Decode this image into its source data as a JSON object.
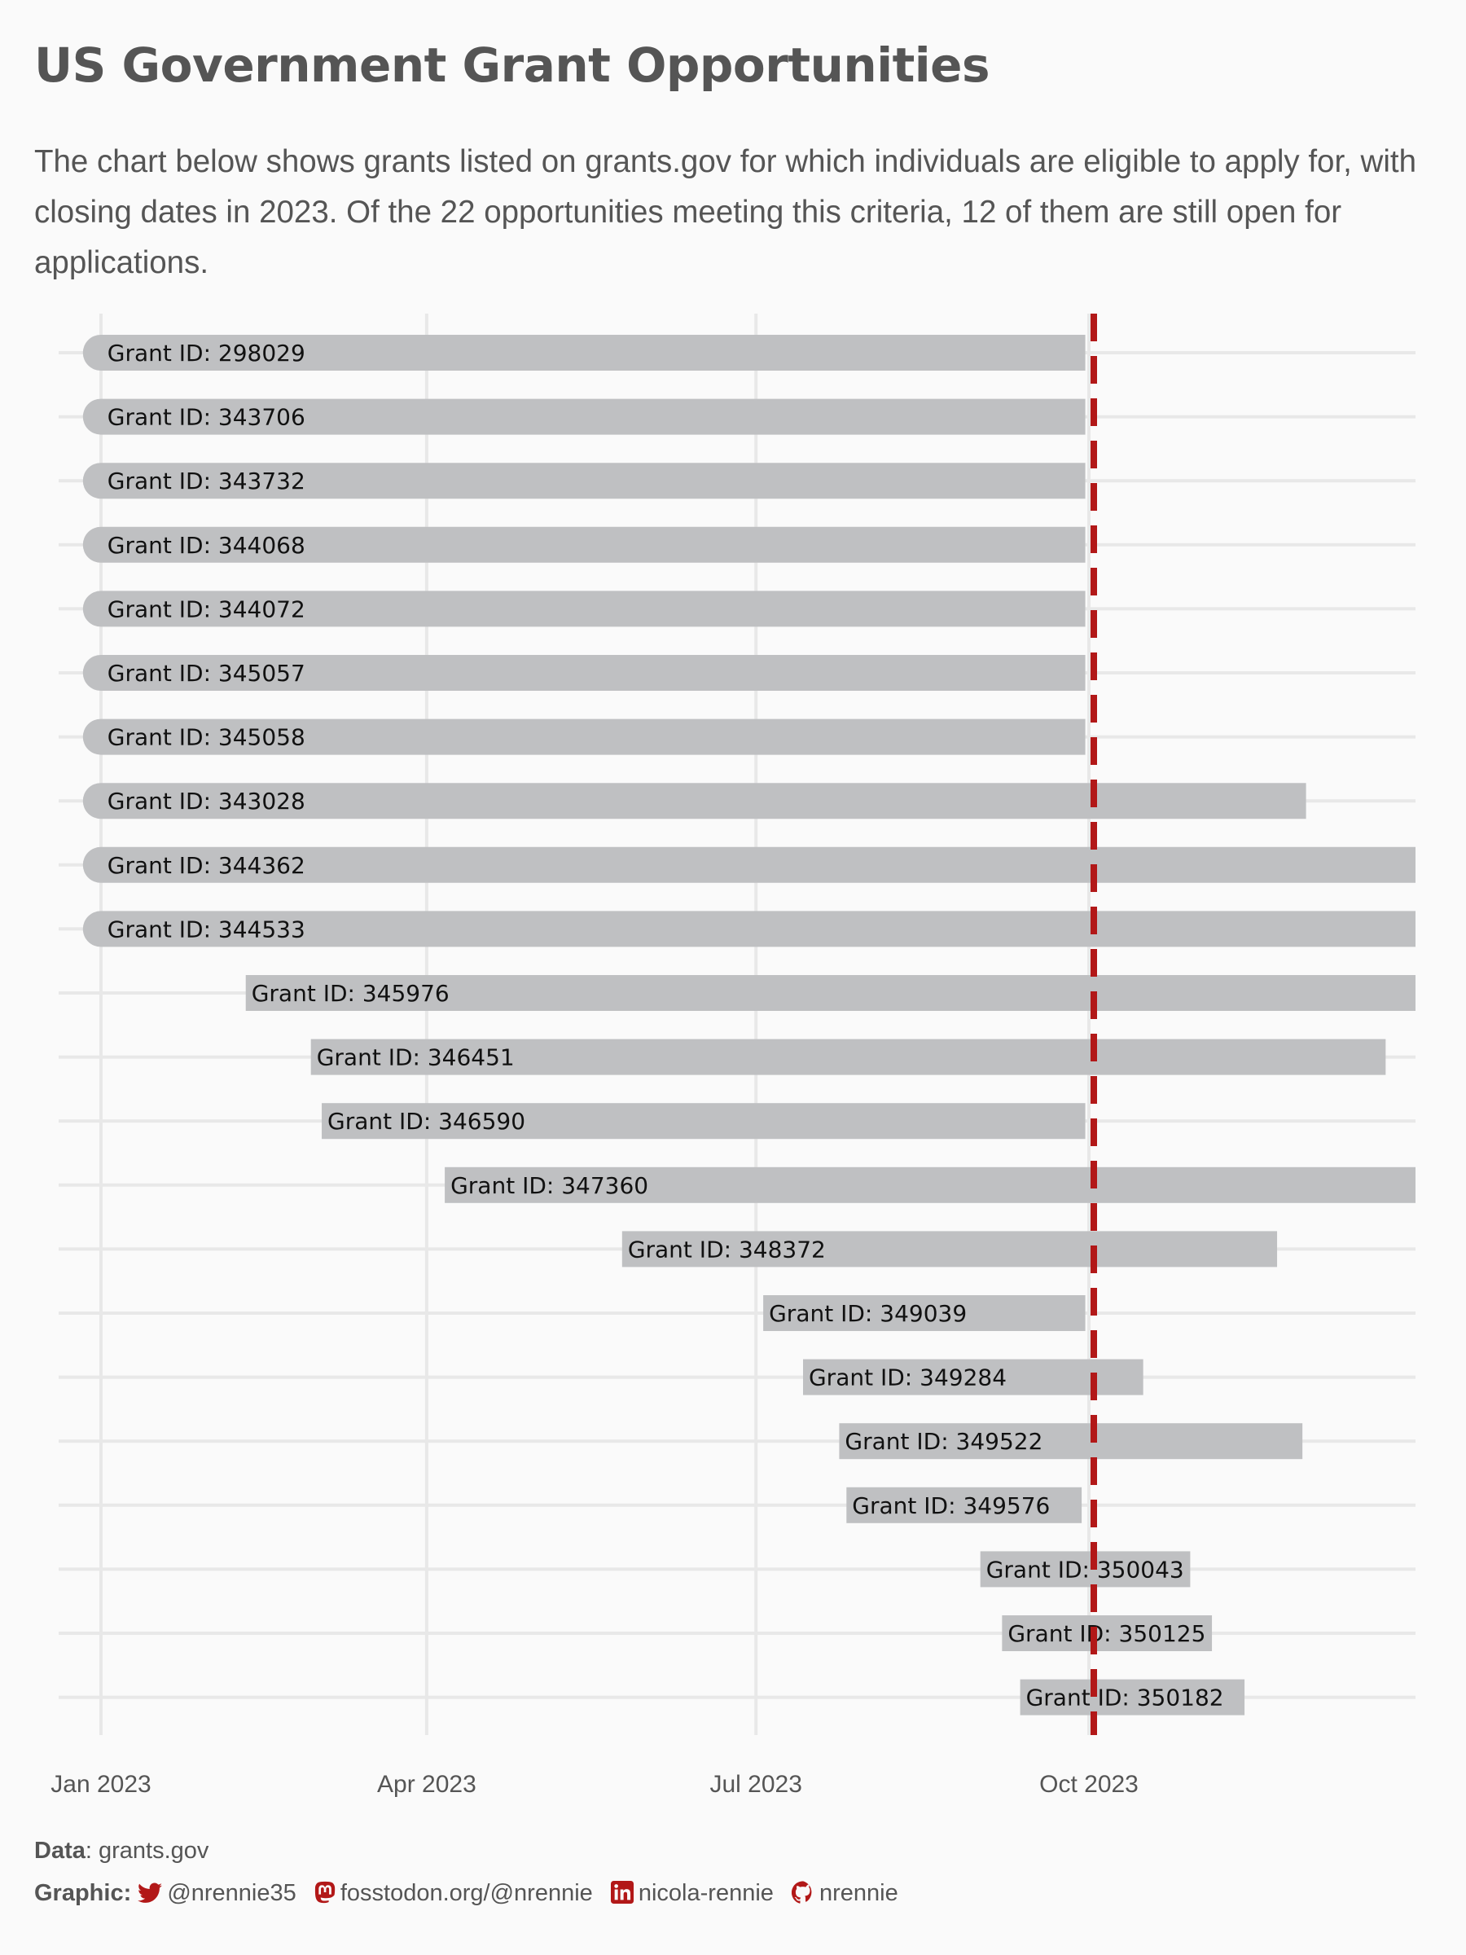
{
  "title": "US Government Grant Opportunities",
  "subtitle": "The chart below shows grants listed on grants.gov for which individuals are eligible to apply for, with closing dates in 2023. Of the 22 opportunities meeting this criteria, 12 of them are still open for applications.",
  "caption": {
    "data_label": "Data",
    "data_value": ": grants.gov",
    "graphic_label": "Graphic:",
    "twitter": "@nrennie35",
    "mastodon": "fosstodon.org/@nrennie",
    "linkedin": "nicola-rennie",
    "github": "nrennie"
  },
  "colors": {
    "background": "#FAFAFA",
    "bar": "#BFC0C2",
    "gridline": "#E8E8E8",
    "reference_line": "#B21818",
    "text": "#555555",
    "icon": "#B21818"
  },
  "icons": [
    "twitter-icon",
    "mastodon-icon",
    "linkedin-icon",
    "github-icon"
  ],
  "chart_data": {
    "type": "bar",
    "orientation": "horizontal-gantt",
    "x_axis": {
      "type": "date",
      "ticks": [
        "2023-01-01",
        "2023-04-01",
        "2023-07-01",
        "2023-10-01"
      ],
      "tick_labels": [
        "Jan 2023",
        "Apr 2023",
        "Jul 2023",
        "Oct 2023"
      ],
      "range": [
        "2022-12-20",
        "2023-12-31"
      ]
    },
    "reference_line": {
      "date": "2023-10-01",
      "style": "dashed"
    },
    "grid": true,
    "bar_label_prefix": "Grant ID: ",
    "bars": [
      {
        "id": "298029",
        "start": "2022-12-27",
        "end": "2023-09-30",
        "rounded_start": true
      },
      {
        "id": "343706",
        "start": "2022-12-27",
        "end": "2023-09-30",
        "rounded_start": true
      },
      {
        "id": "343732",
        "start": "2022-12-27",
        "end": "2023-09-30",
        "rounded_start": true
      },
      {
        "id": "344068",
        "start": "2022-12-27",
        "end": "2023-09-30",
        "rounded_start": true
      },
      {
        "id": "344072",
        "start": "2022-12-27",
        "end": "2023-09-30",
        "rounded_start": true
      },
      {
        "id": "345057",
        "start": "2022-12-27",
        "end": "2023-09-30",
        "rounded_start": true
      },
      {
        "id": "345058",
        "start": "2022-12-27",
        "end": "2023-09-30",
        "rounded_start": true
      },
      {
        "id": "343028",
        "start": "2022-12-27",
        "end": "2023-11-30",
        "rounded_start": true
      },
      {
        "id": "344362",
        "start": "2022-12-27",
        "end": "2023-12-31",
        "rounded_start": true
      },
      {
        "id": "344533",
        "start": "2022-12-27",
        "end": "2023-12-31",
        "rounded_start": true
      },
      {
        "id": "345976",
        "start": "2023-02-10",
        "end": "2023-12-31"
      },
      {
        "id": "346451",
        "start": "2023-02-28",
        "end": "2023-12-22"
      },
      {
        "id": "346590",
        "start": "2023-03-03",
        "end": "2023-09-30"
      },
      {
        "id": "347360",
        "start": "2023-04-06",
        "end": "2023-12-31"
      },
      {
        "id": "348372",
        "start": "2023-05-25",
        "end": "2023-11-22"
      },
      {
        "id": "349039",
        "start": "2023-07-03",
        "end": "2023-09-30"
      },
      {
        "id": "349284",
        "start": "2023-07-14",
        "end": "2023-10-16"
      },
      {
        "id": "349522",
        "start": "2023-07-24",
        "end": "2023-11-29"
      },
      {
        "id": "349576",
        "start": "2023-07-26",
        "end": "2023-09-29"
      },
      {
        "id": "350043",
        "start": "2023-09-01",
        "end": "2023-10-29"
      },
      {
        "id": "350125",
        "start": "2023-09-07",
        "end": "2023-11-04"
      },
      {
        "id": "350182",
        "start": "2023-09-12",
        "end": "2023-11-13"
      }
    ]
  }
}
